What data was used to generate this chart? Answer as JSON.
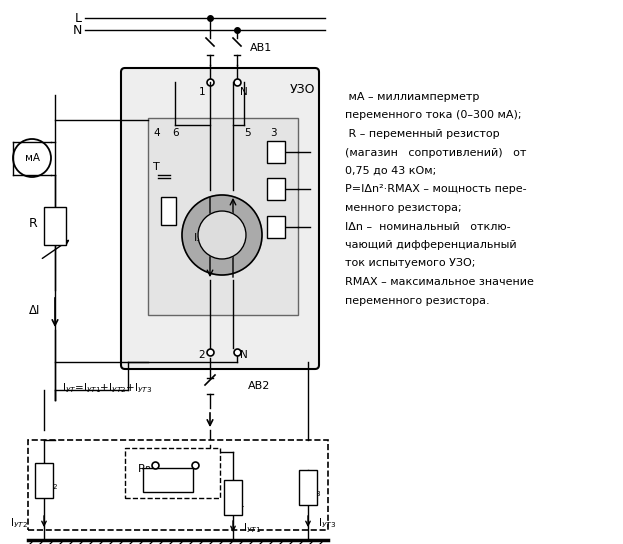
{
  "background": "#ffffff",
  "text_color": "#000000",
  "legend_lines": [
    " мА – миллиамперметр",
    "переменного тока (0–300 мА);",
    " R – переменный резистор",
    "(магазин   сопротивлений)   от",
    "0,75 до 43 кОм;",
    "P=IΔn²·RMAX – мощность пере-",
    "менного резистора;",
    "IΔn –  номинальный   отклю-",
    "чающий дифференциальный",
    "ток испытуемого УЗО;",
    "RMAX – максимальное значение",
    "переменного резистора."
  ]
}
